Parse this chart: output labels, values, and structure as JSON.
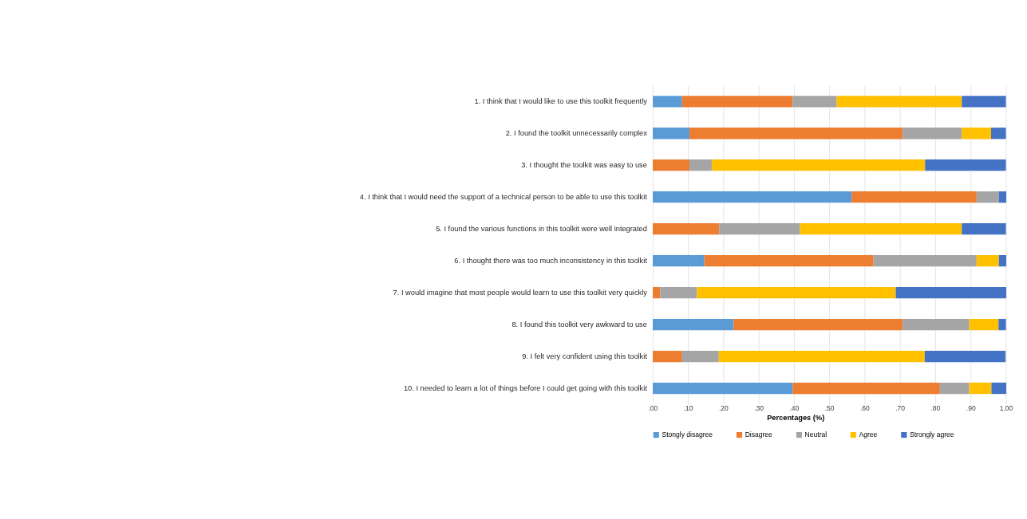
{
  "chart_data": {
    "type": "bar",
    "orientation": "horizontal",
    "stacked": true,
    "categories": [
      "1. I think that I would like to use this toolkit frequently",
      "2. I found the toolkit unnecessarily complex",
      "3. I thought the toolkit was easy to use",
      "4. I think that I would need the support of a technical person to be able to use this toolkit",
      "5. I found the various functions in this toolkit were well integrated",
      "6. I thought there was too much inconsistency in this toolkit",
      "7. I would imagine that most people would learn to use this toolkit very quickly",
      "8. I found this toolkit very awkward to use",
      "9. I felt very confident using this toolkit",
      "10. I needed to learn a lot of things before I could get going with this toolkit"
    ],
    "series": [
      {
        "name": "Stongly disagree",
        "color": "#5b9bd5",
        "values": [
          0.083,
          0.104,
          0,
          0.563,
          0,
          0.146,
          0,
          0.229,
          0,
          0.396
        ]
      },
      {
        "name": "Disagree",
        "color": "#ed7d31",
        "values": [
          0.313,
          0.604,
          0.104,
          0.354,
          0.188,
          0.479,
          0.021,
          0.479,
          0.083,
          0.417
        ]
      },
      {
        "name": "Neutral",
        "color": "#a5a5a5",
        "values": [
          0.125,
          0.167,
          0.063,
          0.063,
          0.229,
          0.292,
          0.104,
          0.188,
          0.104,
          0.083
        ]
      },
      {
        "name": "Agree",
        "color": "#ffc000",
        "values": [
          0.354,
          0.083,
          0.604,
          0,
          0.458,
          0.063,
          0.563,
          0.083,
          0.583,
          0.063
        ]
      },
      {
        "name": "Strongly agree",
        "color": "#4472c4",
        "values": [
          0.125,
          0.042,
          0.229,
          0.021,
          0.125,
          0.021,
          0.313,
          0.021,
          0.229,
          0.042
        ]
      }
    ],
    "xlabel": "Percentages (%)",
    "xlim": [
      0,
      1
    ],
    "xticks": [
      {
        "value": 0,
        "label": ".00"
      },
      {
        "value": 0.1,
        "label": ".10"
      },
      {
        "value": 0.2,
        "label": ".20"
      },
      {
        "value": 0.3,
        "label": ".30"
      },
      {
        "value": 0.4,
        "label": ".40"
      },
      {
        "value": 0.5,
        "label": ".50"
      },
      {
        "value": 0.6,
        "label": ".60"
      },
      {
        "value": 0.7,
        "label": ".70"
      },
      {
        "value": 0.8,
        "label": ".80"
      },
      {
        "value": 0.9,
        "label": ".90"
      },
      {
        "value": 1,
        "label": "1.00"
      }
    ],
    "grid": "x",
    "legend": "bottom"
  }
}
